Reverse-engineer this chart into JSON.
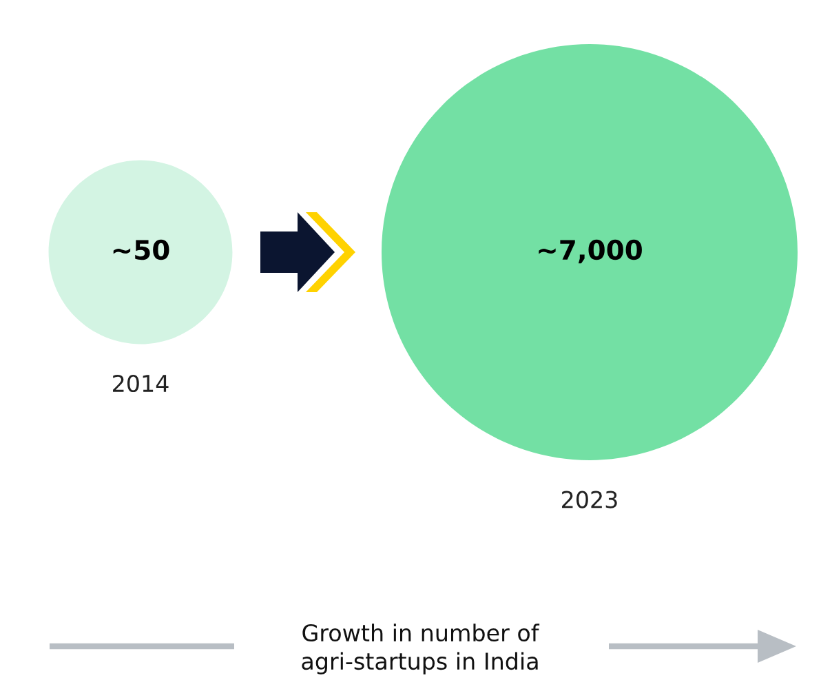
{
  "chart_data": {
    "type": "other",
    "categories": [
      "2014",
      "2023"
    ],
    "values": [
      50,
      7000
    ],
    "value_labels": [
      "~50",
      "~7,000"
    ],
    "colors": [
      "#d3f4e3",
      "#73e0a4"
    ],
    "annotations": [
      "Growth in number of\nagri-startups in India"
    ]
  }
}
